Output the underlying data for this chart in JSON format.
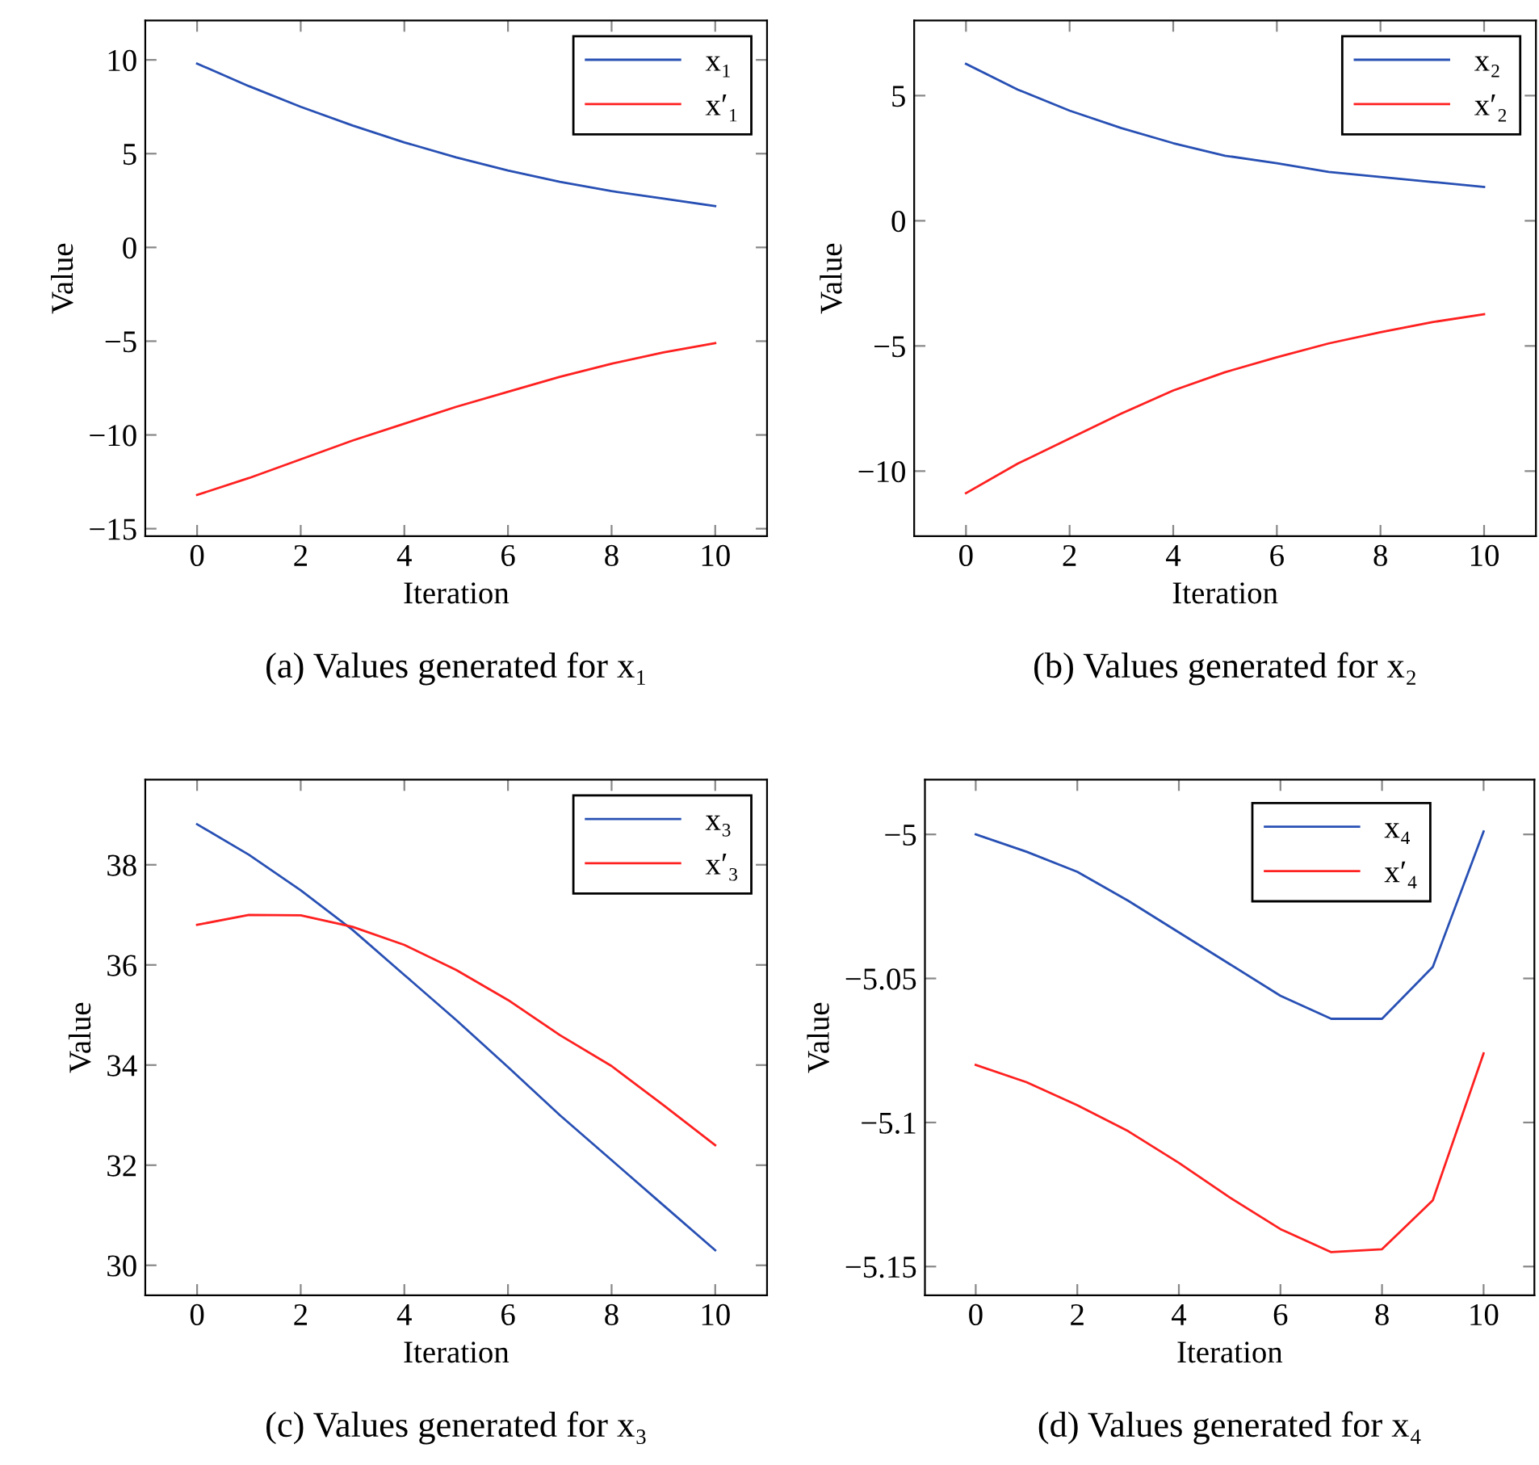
{
  "chart_data": [
    {
      "type": "line",
      "title": "(a) Values generated for x₁",
      "xlabel": "Iteration",
      "ylabel": "Value",
      "x": [
        0,
        1,
        2,
        3,
        4,
        5,
        6,
        7,
        8,
        9,
        10
      ],
      "xlim": [
        -1,
        11
      ],
      "xticks": [
        0,
        2,
        4,
        6,
        8,
        10
      ],
      "ylim": [
        -15.4,
        12.1
      ],
      "yticks": [
        -15,
        -10,
        -5,
        0,
        5,
        10
      ],
      "legend": "top right",
      "grid": false,
      "series": [
        {
          "name": "x₁",
          "color": "#2850b4",
          "values": [
            9.8,
            8.6,
            7.5,
            6.5,
            5.6,
            4.8,
            4.1,
            3.5,
            3.0,
            2.6,
            2.2
          ]
        },
        {
          "name": "x′₁",
          "color": "#ff2020",
          "values": [
            -13.2,
            -12.3,
            -11.3,
            -10.3,
            -9.4,
            -8.5,
            -7.7,
            -6.9,
            -6.2,
            -5.6,
            -5.1
          ]
        }
      ]
    },
    {
      "type": "line",
      "title": "(b) Values generated for x₂",
      "xlabel": "Iteration",
      "ylabel": "Value",
      "x": [
        0,
        1,
        2,
        3,
        4,
        5,
        6,
        7,
        8,
        9,
        10
      ],
      "xlim": [
        -1,
        11
      ],
      "xticks": [
        0,
        2,
        4,
        6,
        8,
        10
      ],
      "ylim": [
        -12.6,
        8
      ],
      "yticks": [
        -10,
        -5,
        0,
        5
      ],
      "legend": "top right",
      "grid": false,
      "series": [
        {
          "name": "x₂",
          "color": "#2850b4",
          "values": [
            6.27,
            5.24,
            4.4,
            3.7,
            3.1,
            2.6,
            2.3,
            1.95,
            1.75,
            1.55,
            1.35
          ]
        },
        {
          "name": "x′₂",
          "color": "#ff2020",
          "values": [
            -10.88,
            -9.7,
            -8.7,
            -7.7,
            -6.78,
            -6.05,
            -5.45,
            -4.9,
            -4.45,
            -4.05,
            -3.73
          ]
        }
      ]
    },
    {
      "type": "line",
      "title": "(c) Values generated for x₃",
      "xlabel": "Iteration",
      "ylabel": "Value",
      "x": [
        0,
        1,
        2,
        3,
        4,
        5,
        6,
        7,
        8,
        9,
        10
      ],
      "xlim": [
        -1,
        11
      ],
      "xticks": [
        0,
        2,
        4,
        6,
        8,
        10
      ],
      "ylim": [
        29.4,
        39.7
      ],
      "yticks": [
        30,
        32,
        34,
        36,
        38
      ],
      "legend": "top right",
      "grid": false,
      "series": [
        {
          "name": "x₃",
          "color": "#2850b4",
          "values": [
            38.81,
            38.2,
            37.49,
            36.7,
            35.8,
            34.9,
            33.96,
            33.0,
            32.1,
            31.2,
            30.3
          ]
        },
        {
          "name": "x′₃",
          "color": "#ff2020",
          "values": [
            36.8,
            37.0,
            36.99,
            36.76,
            36.4,
            35.9,
            35.3,
            34.6,
            33.98,
            33.2,
            32.4
          ]
        }
      ]
    },
    {
      "type": "line",
      "title": "(d) Values generated for x₄",
      "xlabel": "Iteration",
      "ylabel": "Value",
      "x": [
        0,
        1,
        2,
        3,
        4,
        5,
        6,
        7,
        8,
        9,
        10
      ],
      "xlim": [
        -1,
        11
      ],
      "xticks": [
        0,
        2,
        4,
        6,
        8,
        10
      ],
      "ylim": [
        -5.16,
        -4.981
      ],
      "yticks": [
        -5.15,
        -5.1,
        -5.05,
        -5
      ],
      "legend": "top right",
      "grid": false,
      "series": [
        {
          "name": "x₄",
          "color": "#2850b4",
          "values": [
            -5.0,
            -5.006,
            -5.013,
            -5.023,
            -5.034,
            -5.045,
            -5.056,
            -5.064,
            -5.064,
            -5.046,
            -4.999
          ]
        },
        {
          "name": "x′₄",
          "color": "#ff2020",
          "values": [
            -5.08,
            -5.086,
            -5.094,
            -5.103,
            -5.114,
            -5.126,
            -5.137,
            -5.145,
            -5.144,
            -5.127,
            -5.076
          ]
        }
      ]
    }
  ]
}
